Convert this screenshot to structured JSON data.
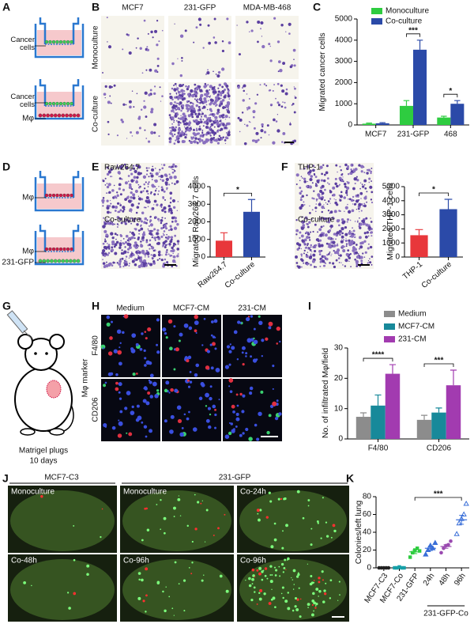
{
  "panels": {
    "A": {
      "letter": "A",
      "cancer_label_1": "Cancer cells",
      "cancer_label_2": "Cancer cells",
      "macrophage_label": "Mφ"
    },
    "B": {
      "letter": "B",
      "columns": [
        "MCF7",
        "231-GFP",
        "MDA-MB-468"
      ],
      "rows": [
        "Monoculture",
        "Co-culture"
      ]
    },
    "C": {
      "letter": "C"
    },
    "D": {
      "letter": "D",
      "labels": [
        "Mφ",
        "Mφ",
        "231-GFP"
      ]
    },
    "E": {
      "letter": "E",
      "image_labels": [
        "Raw264.7",
        "Co-culture"
      ]
    },
    "F": {
      "letter": "F",
      "image_labels": [
        "THP-1",
        "Co-culture"
      ]
    },
    "G": {
      "letter": "G",
      "caption": [
        "Matrigel plugs",
        "10 days"
      ]
    },
    "H": {
      "letter": "H",
      "columns": [
        "Medium",
        "MCF7-CM",
        "231-CM"
      ],
      "rows": [
        "F4/80",
        "CD206"
      ],
      "row_title": "Mφ marker"
    },
    "I": {
      "letter": "I"
    },
    "J": {
      "letter": "J",
      "groups": [
        "MCF7-C3",
        "231-GFP"
      ],
      "image_labels": [
        "Monoculture",
        "Monoculture",
        "Co-24h",
        "Co-96h",
        "Co-48h",
        "Co-96h"
      ]
    },
    "K": {
      "letter": "K"
    }
  },
  "chart_data": [
    {
      "type": "bar",
      "ylabel": "Migrated cancer cells",
      "categories": [
        "MCF7",
        "231-GFP",
        "468"
      ],
      "series": [
        {
          "name": "Monoculture",
          "color": "#2ecc40",
          "values": [
            60,
            900,
            350
          ],
          "errors": [
            30,
            250,
            60
          ]
        },
        {
          "name": "Co-culture",
          "color": "#2b4aa8",
          "values": [
            80,
            3550,
            1000
          ],
          "errors": [
            30,
            450,
            150
          ]
        }
      ],
      "ylim": [
        0,
        5000
      ],
      "yticks": [
        0,
        1000,
        2000,
        3000,
        4000,
        5000
      ],
      "legend": "top-left",
      "significance": [
        "***",
        "*"
      ]
    },
    {
      "type": "bar",
      "ylabel": "Migrated Raw264.7 cells",
      "categories": [
        "Raw264.7",
        "Co-culture"
      ],
      "values": [
        930,
        2570
      ],
      "errors": [
        450,
        700
      ],
      "colors": [
        "#e8373b",
        "#2b4aa8"
      ],
      "ylim": [
        0,
        4000
      ],
      "yticks": [
        0,
        1000,
        2000,
        3000,
        4000
      ],
      "significance": [
        "*"
      ]
    },
    {
      "type": "bar",
      "ylabel": "Migrated THP-1 cells",
      "categories": [
        "THP-1",
        "Co-culture"
      ],
      "values": [
        1550,
        3400
      ],
      "errors": [
        400,
        700
      ],
      "colors": [
        "#e8373b",
        "#2b4aa8"
      ],
      "ylim": [
        0,
        5000
      ],
      "yticks": [
        0,
        1000,
        2000,
        3000,
        4000,
        5000
      ],
      "significance": [
        "*"
      ]
    },
    {
      "type": "bar",
      "ylabel": "No. of infiltrated Mφ/field",
      "categories": [
        "F4/80",
        "CD206"
      ],
      "series": [
        {
          "name": "Medium",
          "color": "#8c8c8c",
          "values": [
            7.3,
            6.3
          ],
          "errors": [
            1.3,
            1.5
          ]
        },
        {
          "name": "MCF7-CM",
          "color": "#17899a",
          "values": [
            11,
            8.7
          ],
          "errors": [
            3.5,
            1.5
          ]
        },
        {
          "name": "231-CM",
          "color": "#a23bb0",
          "values": [
            21.5,
            17.7
          ],
          "errors": [
            3,
            5
          ]
        }
      ],
      "ylim": [
        0,
        30
      ],
      "yticks": [
        0,
        10,
        20,
        30
      ],
      "legend": "top",
      "significance": [
        "****",
        "***"
      ]
    },
    {
      "type": "dot",
      "ylabel": "Colonies/left lung",
      "categories": [
        "MCF7-C3",
        "MCF7-Co",
        "231-GFP",
        "24h",
        "48h",
        "96h"
      ],
      "group_label": "231-GFP-Co",
      "groups": [
        {
          "color": "#222222",
          "marker": "circle",
          "points": [
            0,
            0,
            0,
            0,
            0
          ],
          "mean": 0,
          "error": 0
        },
        {
          "color": "#17a0a8",
          "marker": "square",
          "points": [
            0,
            0,
            1,
            0,
            0
          ],
          "mean": 0,
          "error": 0
        },
        {
          "color": "#2ecc40",
          "marker": "square",
          "points": [
            12,
            17,
            20,
            22,
            19
          ],
          "mean": 18,
          "error": 2
        },
        {
          "color": "#3a6fd8",
          "marker": "triangle",
          "points": [
            15,
            20,
            25,
            22,
            28
          ],
          "mean": 22,
          "error": 2.5
        },
        {
          "color": "#9a4ab0",
          "marker": "circle",
          "points": [
            17,
            22,
            25,
            26,
            30
          ],
          "mean": 24,
          "error": 2
        },
        {
          "color": "#3a6fd8",
          "marker": "triangle-open",
          "points": [
            38,
            50,
            55,
            60,
            72
          ],
          "mean": 54,
          "error": 5
        }
      ],
      "ylim": [
        0,
        80
      ],
      "yticks": [
        0,
        20,
        40,
        60,
        80
      ],
      "significance": [
        "***"
      ]
    }
  ]
}
